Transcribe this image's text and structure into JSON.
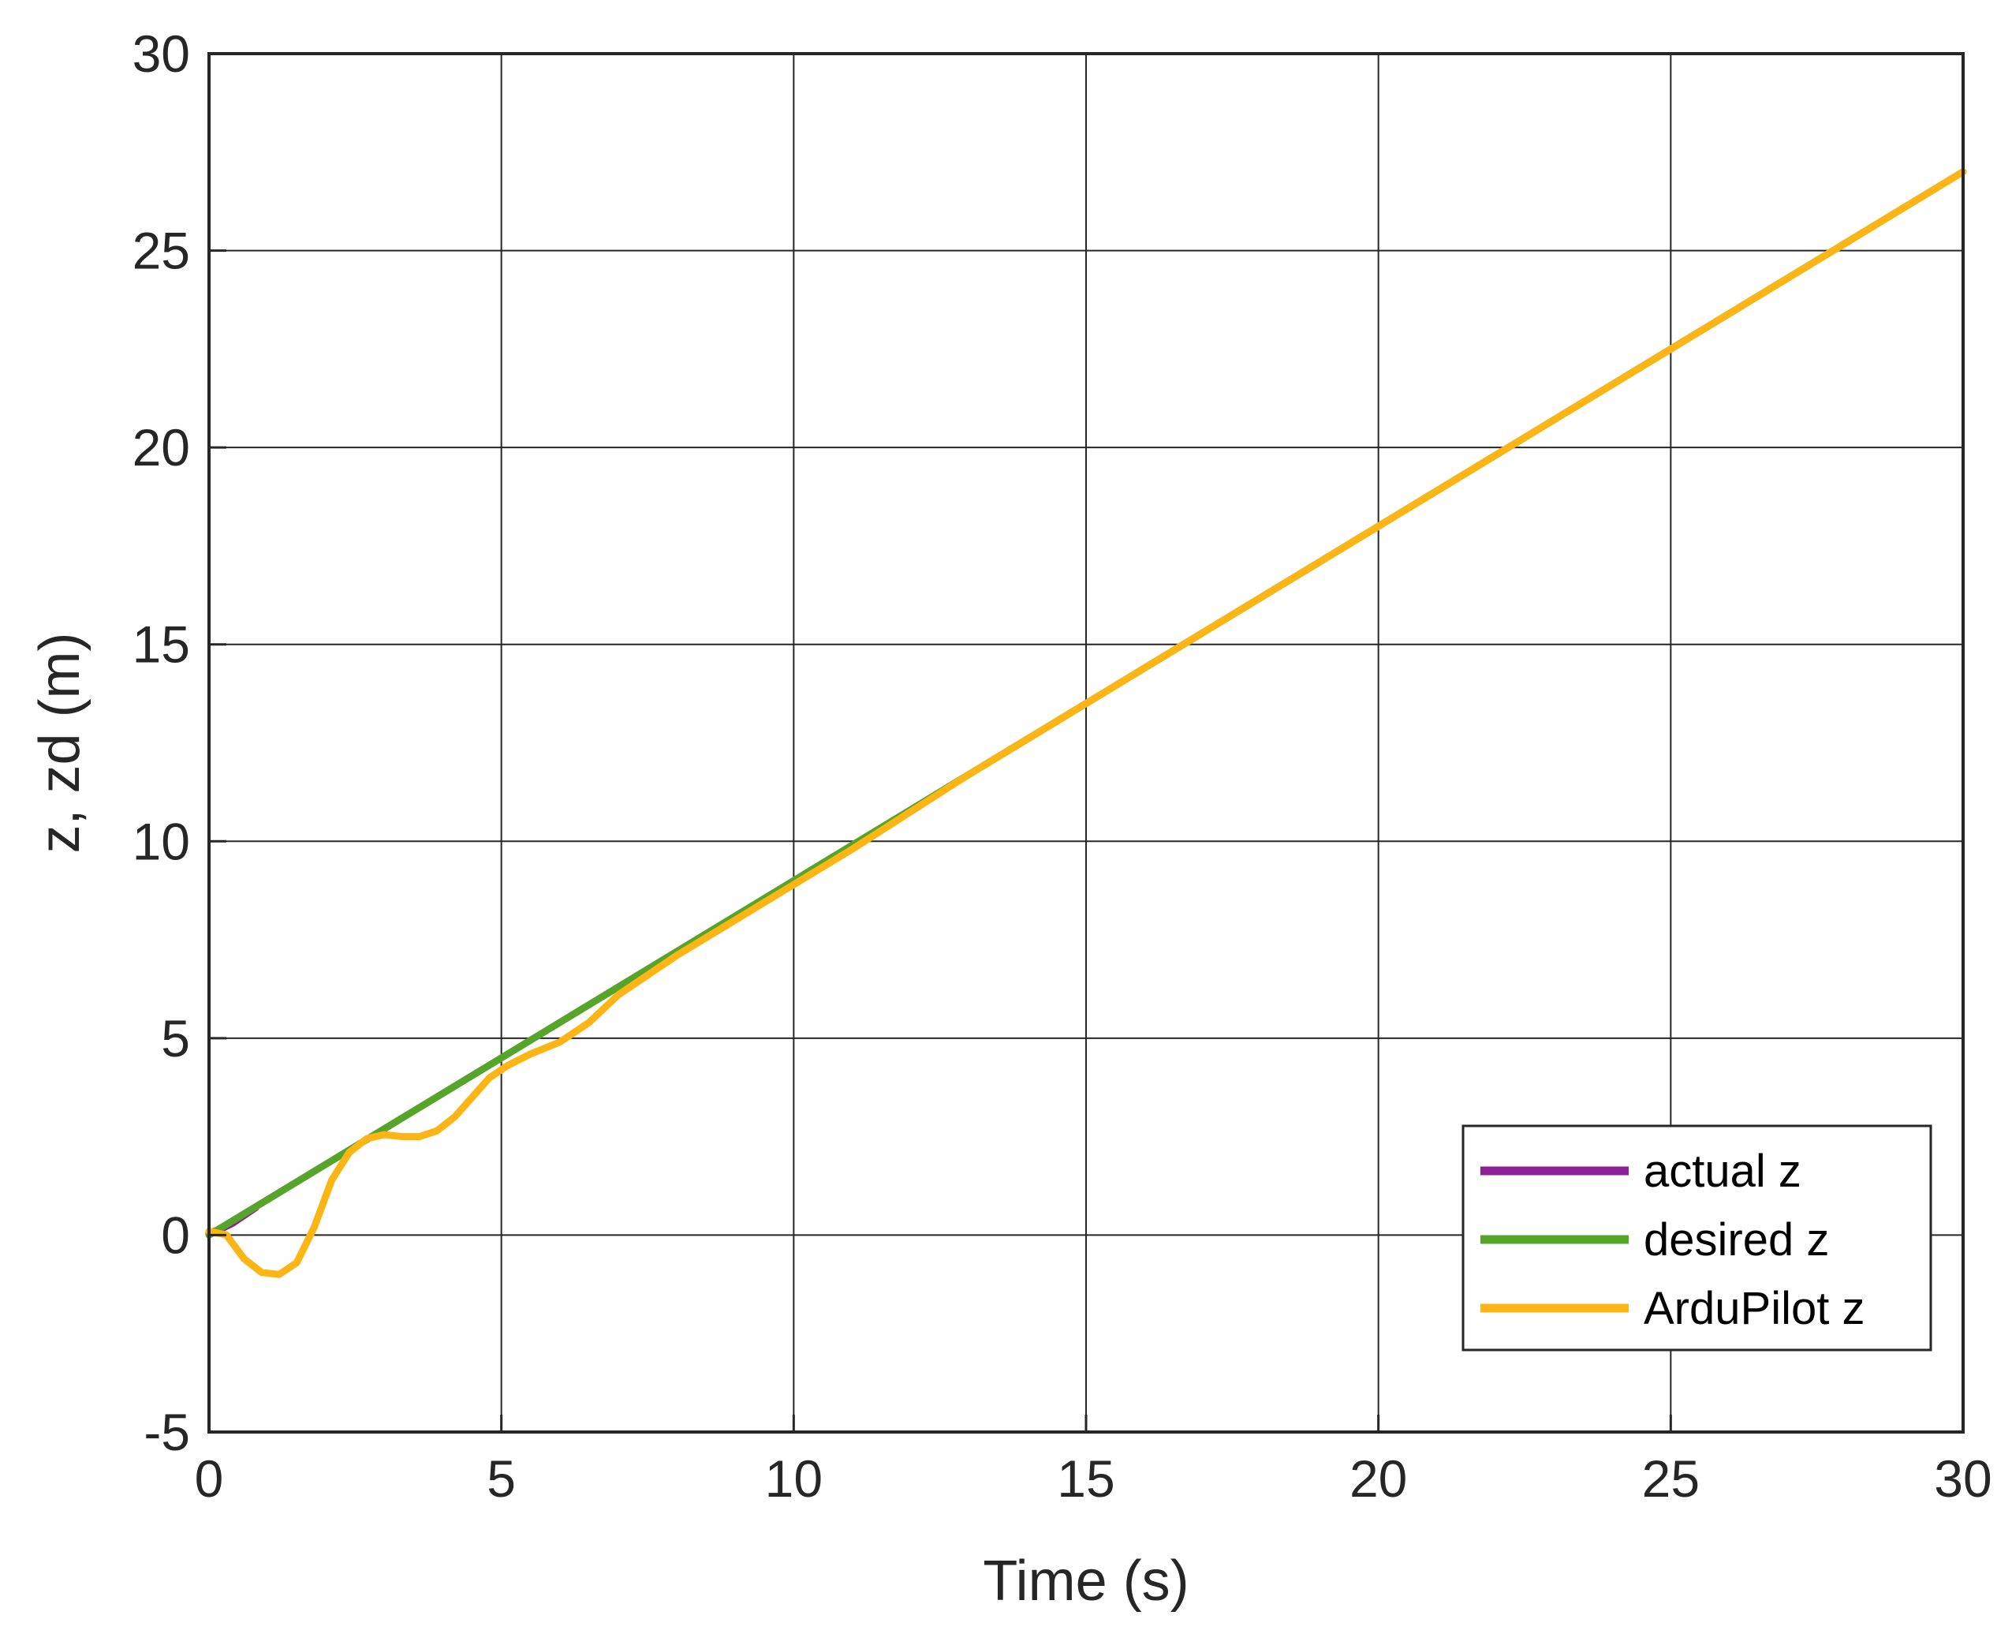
{
  "chart_data": {
    "type": "line",
    "title": "",
    "xlabel": "Time (s)",
    "ylabel": "z, zd (m)",
    "xlim": [
      0,
      30
    ],
    "ylim": [
      -5,
      30
    ],
    "xticks": [
      0,
      5,
      10,
      15,
      20,
      25,
      30
    ],
    "yticks": [
      -5,
      0,
      5,
      10,
      15,
      20,
      25,
      30
    ],
    "xtick_labels": [
      "0",
      "5",
      "10",
      "15",
      "20",
      "25",
      "30"
    ],
    "ytick_labels": [
      "-5",
      "0",
      "5",
      "10",
      "15",
      "20",
      "25",
      "30"
    ],
    "grid": true,
    "legend_position": "bottom-right",
    "series": [
      {
        "name": "actual z",
        "color": "#8e1f95",
        "x": [
          0,
          0.2,
          0.4,
          0.6,
          0.8
        ],
        "y": [
          0.05,
          0.15,
          0.3,
          0.5,
          0.7
        ]
      },
      {
        "name": "desired z",
        "color": "#56a52a",
        "x": [
          0,
          5,
          10,
          15,
          20,
          25,
          30
        ],
        "y": [
          0,
          4.5,
          9,
          13.5,
          18,
          22.5,
          27
        ]
      },
      {
        "name": "ArduPilot z",
        "color": "#fdb515",
        "x": [
          0,
          0.3,
          0.6,
          0.9,
          1.2,
          1.5,
          1.8,
          2.1,
          2.4,
          2.7,
          3.0,
          3.3,
          3.6,
          3.9,
          4.2,
          4.5,
          4.8,
          5.1,
          5.5,
          6.0,
          6.5,
          7.0,
          8.0,
          9.0,
          10.0,
          11.0,
          12.0,
          13.0,
          14.0,
          15.0,
          16.0,
          18.0,
          20.0,
          22.0,
          24.0,
          26.0,
          28.0,
          30.0
        ],
        "y": [
          0.1,
          0.0,
          -0.6,
          -0.95,
          -1.0,
          -0.7,
          0.2,
          1.4,
          2.1,
          2.45,
          2.55,
          2.5,
          2.5,
          2.65,
          3.0,
          3.5,
          4.0,
          4.3,
          4.6,
          4.9,
          5.4,
          6.1,
          7.1,
          8.0,
          8.9,
          9.8,
          10.75,
          11.7,
          12.6,
          13.5,
          14.4,
          16.2,
          18.0,
          19.8,
          21.6,
          23.4,
          25.2,
          27.0
        ]
      }
    ]
  }
}
